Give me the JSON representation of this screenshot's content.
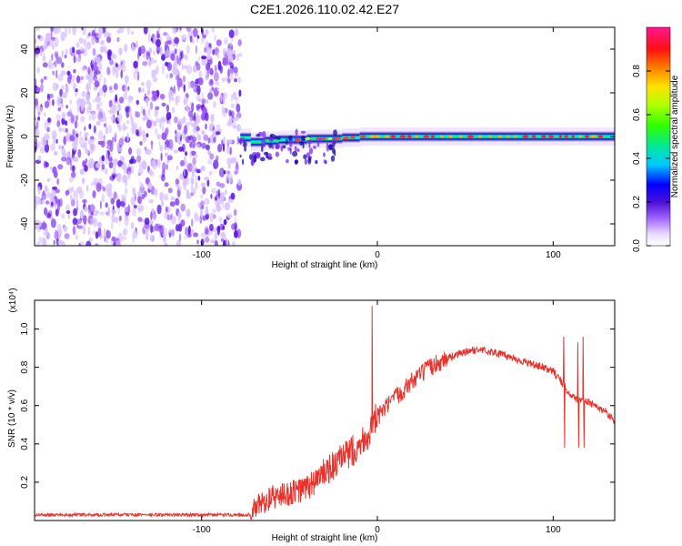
{
  "title": "C2E1.2026.110.02.42.E27",
  "colors": {
    "snr_line": "#e8332d",
    "ridge_dark": "#1a0aa8",
    "scatter": "#7a2cf0",
    "axis": "#000000"
  },
  "chart_data": [
    {
      "type": "heatmap",
      "name": "spectrogram",
      "xlabel": "Height of straight line (km)",
      "ylabel": "Frequency (Hz)",
      "xlim": [
        -195,
        135
      ],
      "ylim": [
        -50,
        50
      ],
      "x_ticks": [
        -100,
        0,
        100
      ],
      "y_ticks": [
        -40,
        -20,
        0,
        20,
        40
      ],
      "colorbar": {
        "label": "Normalized spectral amplitude",
        "range": [
          0,
          1
        ],
        "ticks": [
          0.0,
          0.2,
          0.4,
          0.6,
          0.8
        ]
      },
      "regions": [
        {
          "x_range": [
            -195,
            -78
          ],
          "description": "Broadband scattered noise spanning full frequency range, amplitude ~0.1-0.25"
        },
        {
          "x_range": [
            -78,
            135
          ],
          "description": "Narrow band centered near 0 Hz with peak amplitude ~0.7-1.0 from -20 to 135 km"
        }
      ],
      "ridge_frequency": [
        {
          "x": -78,
          "y": 1
        },
        {
          "x": -72,
          "y": -2
        },
        {
          "x": -64,
          "y": -3
        },
        {
          "x": -56,
          "y": -1
        },
        {
          "x": -48,
          "y": -2
        },
        {
          "x": -40,
          "y": -1
        },
        {
          "x": -30,
          "y": -1
        },
        {
          "x": -20,
          "y": -1
        },
        {
          "x": -10,
          "y": 0
        },
        {
          "x": 0,
          "y": 0
        },
        {
          "x": 20,
          "y": 0
        },
        {
          "x": 40,
          "y": 0
        },
        {
          "x": 60,
          "y": 0
        },
        {
          "x": 80,
          "y": 0
        },
        {
          "x": 100,
          "y": 0
        },
        {
          "x": 115,
          "y": 0
        },
        {
          "x": 135,
          "y": 0
        }
      ]
    },
    {
      "type": "line",
      "name": "snr",
      "xlabel": "Height of straight line (km)",
      "ylabel": "SNR (10 * v/v)",
      "y_multiplier_label": "(x10⁴)",
      "xlim": [
        -195,
        135
      ],
      "ylim": [
        0,
        1.15
      ],
      "x_ticks": [
        -100,
        0,
        100
      ],
      "y_ticks": [
        0.2,
        0.4,
        0.6,
        0.8,
        1.0
      ],
      "series": [
        {
          "name": "SNR",
          "x": [
            -195,
            -180,
            -160,
            -140,
            -120,
            -100,
            -85,
            -72,
            -68,
            -60,
            -50,
            -40,
            -30,
            -20,
            -10,
            -3,
            0,
            10,
            20,
            30,
            40,
            50,
            55,
            60,
            70,
            80,
            90,
            100,
            105,
            108,
            112,
            115,
            120,
            125,
            130,
            135
          ],
          "y": [
            0.03,
            0.03,
            0.03,
            0.03,
            0.03,
            0.03,
            0.03,
            0.03,
            0.08,
            0.12,
            0.14,
            0.17,
            0.25,
            0.32,
            0.4,
            0.48,
            0.54,
            0.64,
            0.73,
            0.8,
            0.85,
            0.88,
            0.89,
            0.89,
            0.87,
            0.84,
            0.81,
            0.78,
            0.72,
            0.68,
            0.64,
            0.63,
            0.62,
            0.59,
            0.57,
            0.52
          ]
        }
      ],
      "spikes": [
        {
          "x": -3,
          "y": 1.12
        },
        {
          "x": 106,
          "y": 0.96
        },
        {
          "x": 114,
          "y": 0.93
        },
        {
          "x": 117,
          "y": 0.96
        }
      ]
    }
  ]
}
